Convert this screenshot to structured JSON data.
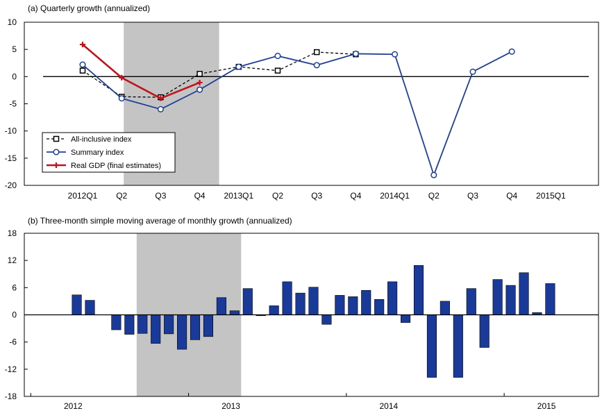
{
  "chart_data": [
    {
      "type": "line",
      "title": "(a) Quarterly growth (annualized)",
      "xlabel": "",
      "ylabel": "",
      "ylim": [
        -20,
        10
      ],
      "yticks": [
        10,
        5,
        0,
        -5,
        -10,
        -15,
        -20
      ],
      "categories": [
        "2012Q1",
        "Q2",
        "Q3",
        "Q4",
        "2013Q1",
        "Q2",
        "Q3",
        "Q4",
        "2014Q1",
        "Q2",
        "Q3",
        "Q4",
        "2015Q1"
      ],
      "shaded_range": [
        "Q2",
        "Q4"
      ],
      "zero_line": true,
      "legend_position": "bottom-left",
      "series": [
        {
          "name": "All-inclusive index",
          "color": "#000000",
          "dash": true,
          "marker": "square",
          "values": [
            1.1,
            -3.7,
            -3.8,
            0.5,
            1.8,
            1.1,
            4.5,
            4.1,
            null,
            null,
            null,
            null,
            null
          ]
        },
        {
          "name": "Summary index",
          "color": "#1f3f95",
          "dash": false,
          "marker": "circle",
          "values": [
            2.2,
            -4.0,
            -6.0,
            -2.4,
            1.8,
            3.8,
            2.1,
            4.2,
            4.1,
            -18.1,
            0.9,
            4.6,
            null
          ]
        },
        {
          "name": "Real GDP (final estimates)",
          "color": "#c0141c",
          "dash": false,
          "marker": "plus",
          "values": [
            5.9,
            -0.2,
            -4.0,
            -1.1,
            null,
            null,
            null,
            null,
            null,
            null,
            null,
            null,
            null
          ]
        }
      ]
    },
    {
      "type": "bar",
      "title": "(b) Three-month simple moving average of monthly growth (annualized)",
      "xlabel": "",
      "ylabel": "",
      "ylim": [
        -18,
        18
      ],
      "yticks": [
        18,
        12,
        6,
        0,
        -6,
        -12,
        -18
      ],
      "year_labels": [
        "2012",
        "2013",
        "2014",
        "2015"
      ],
      "shaded_range": [
        8,
        15
      ],
      "bar_color": "#1a3a9a",
      "months": [
        "2012-01",
        "2012-02",
        "2012-03",
        "2012-04",
        "2012-05",
        "2012-06",
        "2012-07",
        "2012-08",
        "2012-09",
        "2012-10",
        "2012-11",
        "2012-12",
        "2013-01",
        "2013-02",
        "2013-03",
        "2013-04",
        "2013-05",
        "2013-06",
        "2013-07",
        "2013-08",
        "2013-09",
        "2013-10",
        "2013-11",
        "2013-12",
        "2014-01",
        "2014-02",
        "2014-03",
        "2014-04",
        "2014-05",
        "2014-06",
        "2014-07",
        "2014-08",
        "2014-09",
        "2014-10",
        "2014-11",
        "2014-12",
        "2015-01",
        "2015-02",
        "2015-03",
        "2015-04"
      ],
      "values": [
        null,
        null,
        null,
        4.4,
        3.2,
        null,
        -3.3,
        -4.3,
        -4.1,
        -6.3,
        -4.2,
        -7.6,
        -5.5,
        -4.8,
        3.8,
        0.9,
        5.8,
        -0.2,
        2.0,
        7.3,
        4.8,
        6.1,
        -2.1,
        4.3,
        4.0,
        5.4,
        3.4,
        7.3,
        -1.7,
        10.9,
        -13.8,
        3.0,
        -13.8,
        5.8,
        -7.2,
        7.8,
        6.5,
        9.3,
        0.5,
        6.9
      ]
    }
  ]
}
